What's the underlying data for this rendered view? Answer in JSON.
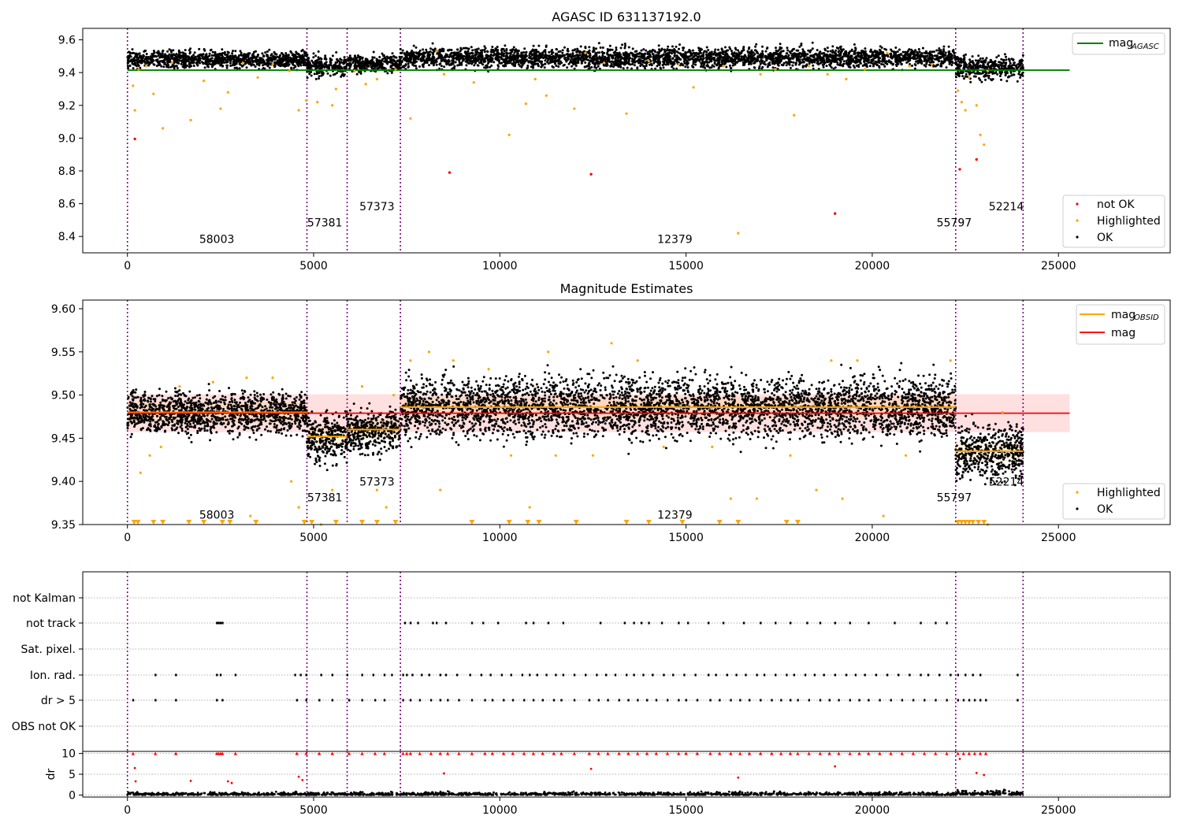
{
  "chart_data": [
    {
      "type": "scatter",
      "title": "AGASC ID 631137192.0",
      "xlim": [
        -1200,
        28000
      ],
      "ylim": [
        8.3,
        9.67
      ],
      "xticks": [
        0,
        5000,
        10000,
        15000,
        20000,
        25000
      ],
      "yticks": [
        8.4,
        8.6,
        8.8,
        9.0,
        9.2,
        9.4,
        9.6
      ],
      "ytick_labels": [
        "8.4",
        "8.6",
        "8.8",
        "9.0",
        "9.2",
        "9.4",
        "9.6"
      ],
      "obs_boundaries": [
        0,
        4820,
        5900,
        7330,
        22240,
        24050
      ],
      "obs_labels": [
        {
          "text": "58003",
          "x": 2400,
          "y": 8.36
        },
        {
          "text": "57381",
          "x": 5300,
          "y": 8.46
        },
        {
          "text": "57373",
          "x": 6700,
          "y": 8.56
        },
        {
          "text": "12379",
          "x": 14700,
          "y": 8.36
        },
        {
          "text": "55797",
          "x": 22200,
          "y": 8.46
        },
        {
          "text": "52214",
          "x": 23600,
          "y": 8.56
        }
      ],
      "mag_agasc": 9.415,
      "mag_agasc_xrange": [
        0,
        25300
      ],
      "ok_segments": [
        {
          "x0": 0,
          "x1": 4820,
          "mean": 9.48,
          "spread": 0.025
        },
        {
          "x0": 4820,
          "x1": 5900,
          "mean": 9.44,
          "spread": 0.03
        },
        {
          "x0": 5900,
          "x1": 7330,
          "mean": 9.455,
          "spread": 0.025
        },
        {
          "x0": 7330,
          "x1": 22240,
          "mean": 9.49,
          "spread": 0.03
        },
        {
          "x0": 22240,
          "x1": 24050,
          "mean": 9.43,
          "spread": 0.035
        }
      ],
      "highlighted_points": [
        [
          150,
          9.32
        ],
        [
          200,
          9.17
        ],
        [
          300,
          9.42
        ],
        [
          500,
          9.44
        ],
        [
          700,
          9.27
        ],
        [
          950,
          9.06
        ],
        [
          1200,
          9.46
        ],
        [
          1700,
          9.11
        ],
        [
          2050,
          9.35
        ],
        [
          2500,
          9.18
        ],
        [
          2700,
          9.28
        ],
        [
          3100,
          9.46
        ],
        [
          3500,
          9.37
        ],
        [
          3900,
          9.45
        ],
        [
          4350,
          9.41
        ],
        [
          4600,
          9.17
        ],
        [
          4800,
          9.23
        ],
        [
          5100,
          9.22
        ],
        [
          5500,
          9.2
        ],
        [
          5600,
          9.3
        ],
        [
          6100,
          9.41
        ],
        [
          6400,
          9.33
        ],
        [
          6700,
          9.36
        ],
        [
          7200,
          9.42
        ],
        [
          7600,
          9.12
        ],
        [
          8300,
          9.53
        ],
        [
          8500,
          9.39
        ],
        [
          9300,
          9.34
        ],
        [
          10250,
          9.02
        ],
        [
          10700,
          9.21
        ],
        [
          10950,
          9.36
        ],
        [
          11250,
          9.26
        ],
        [
          12000,
          9.18
        ],
        [
          12300,
          9.52
        ],
        [
          12800,
          9.46
        ],
        [
          13400,
          9.15
        ],
        [
          14000,
          9.47
        ],
        [
          14800,
          9.45
        ],
        [
          15200,
          9.31
        ],
        [
          16000,
          9.44
        ],
        [
          16400,
          8.42
        ],
        [
          17000,
          9.39
        ],
        [
          17400,
          9.42
        ],
        [
          17900,
          9.14
        ],
        [
          18300,
          9.44
        ],
        [
          18800,
          9.39
        ],
        [
          19300,
          9.36
        ],
        [
          19800,
          9.42
        ],
        [
          20400,
          9.52
        ],
        [
          21000,
          9.44
        ],
        [
          21600,
          9.45
        ],
        [
          22300,
          9.29
        ],
        [
          22400,
          9.22
        ],
        [
          22500,
          9.17
        ],
        [
          22600,
          9.37
        ],
        [
          22800,
          9.2
        ],
        [
          22900,
          9.02
        ],
        [
          23000,
          8.96
        ],
        [
          23100,
          9.41
        ]
      ],
      "not_ok_points": [
        [
          200,
          8.995
        ],
        [
          8650,
          8.79
        ],
        [
          12450,
          8.78
        ],
        [
          19000,
          8.54
        ],
        [
          22350,
          8.81
        ],
        [
          22800,
          8.87
        ]
      ],
      "legend": [
        {
          "label": "mag",
          "sub": "AGASC",
          "color": "#008000",
          "kind": "line",
          "position": "upper right"
        },
        {
          "label": "not OK",
          "color": "#ff0000",
          "kind": "dot",
          "position": "lower right"
        },
        {
          "label": "Highlighted",
          "color": "#ffa500",
          "kind": "dot",
          "position": "lower right"
        },
        {
          "label": "OK",
          "color": "#000000",
          "kind": "dot",
          "position": "lower right"
        }
      ]
    },
    {
      "type": "scatter",
      "title": "Magnitude Estimates",
      "xlim": [
        -1200,
        28000
      ],
      "ylim": [
        9.35,
        9.61
      ],
      "xticks": [
        0,
        5000,
        10000,
        15000,
        20000,
        25000
      ],
      "yticks": [
        9.35,
        9.4,
        9.45,
        9.5,
        9.55,
        9.6
      ],
      "ytick_labels": [
        "9.35",
        "9.40",
        "9.45",
        "9.50",
        "9.55",
        "9.60"
      ],
      "obs_boundaries": [
        0,
        4820,
        5900,
        7330,
        22240,
        24050
      ],
      "obs_labels": [
        {
          "text": "58003",
          "x": 2400,
          "y": 9.357
        },
        {
          "text": "57381",
          "x": 5300,
          "y": 9.377
        },
        {
          "text": "57373",
          "x": 6700,
          "y": 9.395
        },
        {
          "text": "12379",
          "x": 14700,
          "y": 9.357
        },
        {
          "text": "55797",
          "x": 22200,
          "y": 9.377
        },
        {
          "text": "52214",
          "x": 23600,
          "y": 9.395
        }
      ],
      "mag": 9.479,
      "mag_band": [
        9.457,
        9.501
      ],
      "mag_xrange": [
        0,
        25300
      ],
      "mag_obsid": [
        {
          "x0": 0,
          "x1": 4820,
          "value": 9.48
        },
        {
          "x0": 4820,
          "x1": 5900,
          "value": 9.452
        },
        {
          "x0": 5900,
          "x1": 7330,
          "value": 9.46
        },
        {
          "x0": 7330,
          "x1": 22240,
          "value": 9.486
        },
        {
          "x0": 22240,
          "x1": 24050,
          "value": 9.435
        }
      ],
      "ok_segments": [
        {
          "x0": 0,
          "x1": 4820,
          "mean": 9.48,
          "spread": 0.012
        },
        {
          "x0": 4820,
          "x1": 5900,
          "mean": 9.45,
          "spread": 0.014
        },
        {
          "x0": 5900,
          "x1": 7330,
          "mean": 9.458,
          "spread": 0.012
        },
        {
          "x0": 7330,
          "x1": 22240,
          "mean": 9.486,
          "spread": 0.017
        },
        {
          "x0": 22240,
          "x1": 24050,
          "mean": 9.435,
          "spread": 0.016
        }
      ],
      "highlighted_points": [
        [
          350,
          9.41
        ],
        [
          600,
          9.43
        ],
        [
          900,
          9.44
        ],
        [
          1400,
          9.51
        ],
        [
          2300,
          9.515
        ],
        [
          3200,
          9.52
        ],
        [
          3300,
          9.36
        ],
        [
          3900,
          9.52
        ],
        [
          4400,
          9.4
        ],
        [
          4600,
          9.37
        ],
        [
          5200,
          9.35
        ],
        [
          5500,
          9.39
        ],
        [
          6300,
          9.51
        ],
        [
          6700,
          9.39
        ],
        [
          6950,
          9.37
        ],
        [
          7150,
          9.5
        ],
        [
          7600,
          9.54
        ],
        [
          8100,
          9.55
        ],
        [
          8400,
          9.39
        ],
        [
          8750,
          9.54
        ],
        [
          9700,
          9.53
        ],
        [
          10300,
          9.43
        ],
        [
          10800,
          9.37
        ],
        [
          11300,
          9.55
        ],
        [
          11500,
          9.43
        ],
        [
          12500,
          9.43
        ],
        [
          13000,
          9.56
        ],
        [
          13700,
          9.54
        ],
        [
          14400,
          9.44
        ],
        [
          15700,
          9.44
        ],
        [
          16200,
          9.38
        ],
        [
          16900,
          9.38
        ],
        [
          17800,
          9.43
        ],
        [
          18500,
          9.39
        ],
        [
          18900,
          9.54
        ],
        [
          19200,
          9.38
        ],
        [
          19600,
          9.54
        ],
        [
          20300,
          9.36
        ],
        [
          20900,
          9.43
        ],
        [
          22100,
          9.54
        ],
        [
          23100,
          9.35
        ],
        [
          23500,
          9.48
        ]
      ],
      "clipped_markers_x": [
        180,
        280,
        700,
        950,
        1650,
        2050,
        2550,
        2750,
        3450,
        4750,
        4950,
        5600,
        6300,
        6700,
        7200,
        9250,
        10250,
        10750,
        11050,
        12050,
        13400,
        14000,
        14900,
        15900,
        16400,
        17700,
        18000,
        22300,
        22400,
        22500,
        22600,
        22700,
        22850,
        23000
      ],
      "legend": [
        {
          "label": "mag",
          "sub": "OBSID",
          "color": "#ffa500",
          "kind": "line",
          "position": "upper right"
        },
        {
          "label": "mag",
          "color": "#ff0000",
          "kind": "line",
          "position": "upper right"
        },
        {
          "label": "Highlighted",
          "color": "#ffa500",
          "kind": "dot",
          "position": "lower right"
        },
        {
          "label": "OK",
          "color": "#000000",
          "kind": "dot",
          "position": "lower right"
        }
      ]
    },
    {
      "type": "scatter",
      "categories": [
        "not Kalman",
        "not track",
        "Sat. pixel.",
        "Ion. rad.",
        "dr > 5",
        "OBS not OK"
      ],
      "xlim": [
        -1200,
        28000
      ],
      "obs_boundaries": [
        0,
        4820,
        5900,
        7330,
        22240,
        24050
      ],
      "flags": {
        "not track": [
          2400,
          2450,
          2500,
          2550,
          7450,
          7600,
          7800,
          8200,
          8300,
          8550,
          9250,
          9550,
          9950,
          10700,
          10900,
          11300,
          11700,
          12700,
          13350,
          13600,
          13800,
          14000,
          14350,
          14800,
          15050,
          15600,
          16000,
          16550,
          17000,
          17400,
          17800,
          18250,
          18600,
          19000,
          19400,
          19900,
          20600,
          21300,
          21700,
          22000
        ],
        "Ion. rad.": [
          750,
          1300,
          2400,
          2500,
          2900,
          4500,
          4650,
          4800,
          5200,
          5500,
          5900,
          6300,
          6600,
          6900,
          7100,
          7400,
          7500,
          7650,
          7900,
          8100,
          8400,
          8550,
          8850,
          9200,
          9500,
          9750,
          10050,
          10300,
          10600,
          10800,
          11000,
          11250,
          11500,
          11700,
          12000,
          12300,
          12600,
          12850,
          13100,
          13400,
          13600,
          13850,
          14100,
          14400,
          14650,
          14950,
          15250,
          15600,
          15800,
          16100,
          16350,
          16600,
          16900,
          17100,
          17400,
          17700,
          17900,
          18200,
          18450,
          18700,
          19000,
          19300,
          19550,
          19800,
          20100,
          20400,
          20700,
          21000,
          21300,
          21500,
          21800,
          22100,
          22300,
          22500,
          22700,
          22900,
          23900
        ],
        "dr > 5": [
          150,
          750,
          1300,
          2400,
          2550,
          4550,
          4800,
          5150,
          5500,
          5950,
          6300,
          6650,
          6900,
          7400,
          7600,
          7850,
          8150,
          8400,
          8600,
          8900,
          9250,
          9600,
          9800,
          10100,
          10350,
          10650,
          10900,
          11150,
          11450,
          11650,
          12000,
          12400,
          12650,
          12900,
          13200,
          13450,
          13700,
          13950,
          14200,
          14500,
          14800,
          15000,
          15300,
          15650,
          15900,
          16200,
          16450,
          16700,
          17000,
          17300,
          17550,
          17800,
          18000,
          18300,
          18600,
          18850,
          19100,
          19400,
          19650,
          19900,
          20200,
          20500,
          20800,
          21100,
          21400,
          21700,
          22000,
          22300,
          22450,
          22600,
          22750,
          22900,
          23050,
          23900
        ]
      }
    },
    {
      "type": "scatter",
      "ylabel": "dr",
      "xlim": [
        -1200,
        28000
      ],
      "ylim": [
        -0.5,
        10.5
      ],
      "yticks": [
        0,
        5,
        10
      ],
      "xticks": [
        0,
        5000,
        10000,
        15000,
        20000,
        25000
      ],
      "obs_boundaries": [
        0,
        4820,
        5900,
        7330,
        22240,
        24050
      ],
      "clipped_x": [
        150,
        750,
        1300,
        2400,
        2450,
        2500,
        2550,
        2900,
        4550,
        4800,
        5150,
        5500,
        5950,
        6300,
        6650,
        6900,
        7400,
        7500,
        7600,
        7850,
        8150,
        8400,
        8600,
        8900,
        9250,
        9600,
        9800,
        10100,
        10350,
        10650,
        10900,
        11150,
        11450,
        11650,
        12000,
        12400,
        12650,
        12900,
        13200,
        13450,
        13700,
        13950,
        14200,
        14500,
        14800,
        15000,
        15300,
        15650,
        15900,
        16200,
        16450,
        16700,
        17000,
        17300,
        17550,
        17800,
        18000,
        18300,
        18600,
        18850,
        19100,
        19400,
        19650,
        19900,
        20200,
        20500,
        20800,
        21100,
        21400,
        21700,
        22000,
        22300,
        22450,
        22600,
        22750,
        22900,
        23050
      ],
      "mid_points": [
        [
          200,
          6.5
        ],
        [
          220,
          3.3
        ],
        [
          1700,
          3.4
        ],
        [
          2700,
          3.3
        ],
        [
          2800,
          2.9
        ],
        [
          4600,
          4.4
        ],
        [
          4700,
          3.6
        ],
        [
          8500,
          5.2
        ],
        [
          12450,
          6.3
        ],
        [
          16400,
          4.2
        ],
        [
          19000,
          6.9
        ],
        [
          22350,
          8.7
        ],
        [
          22800,
          5.3
        ],
        [
          23000,
          4.8
        ]
      ]
    }
  ]
}
